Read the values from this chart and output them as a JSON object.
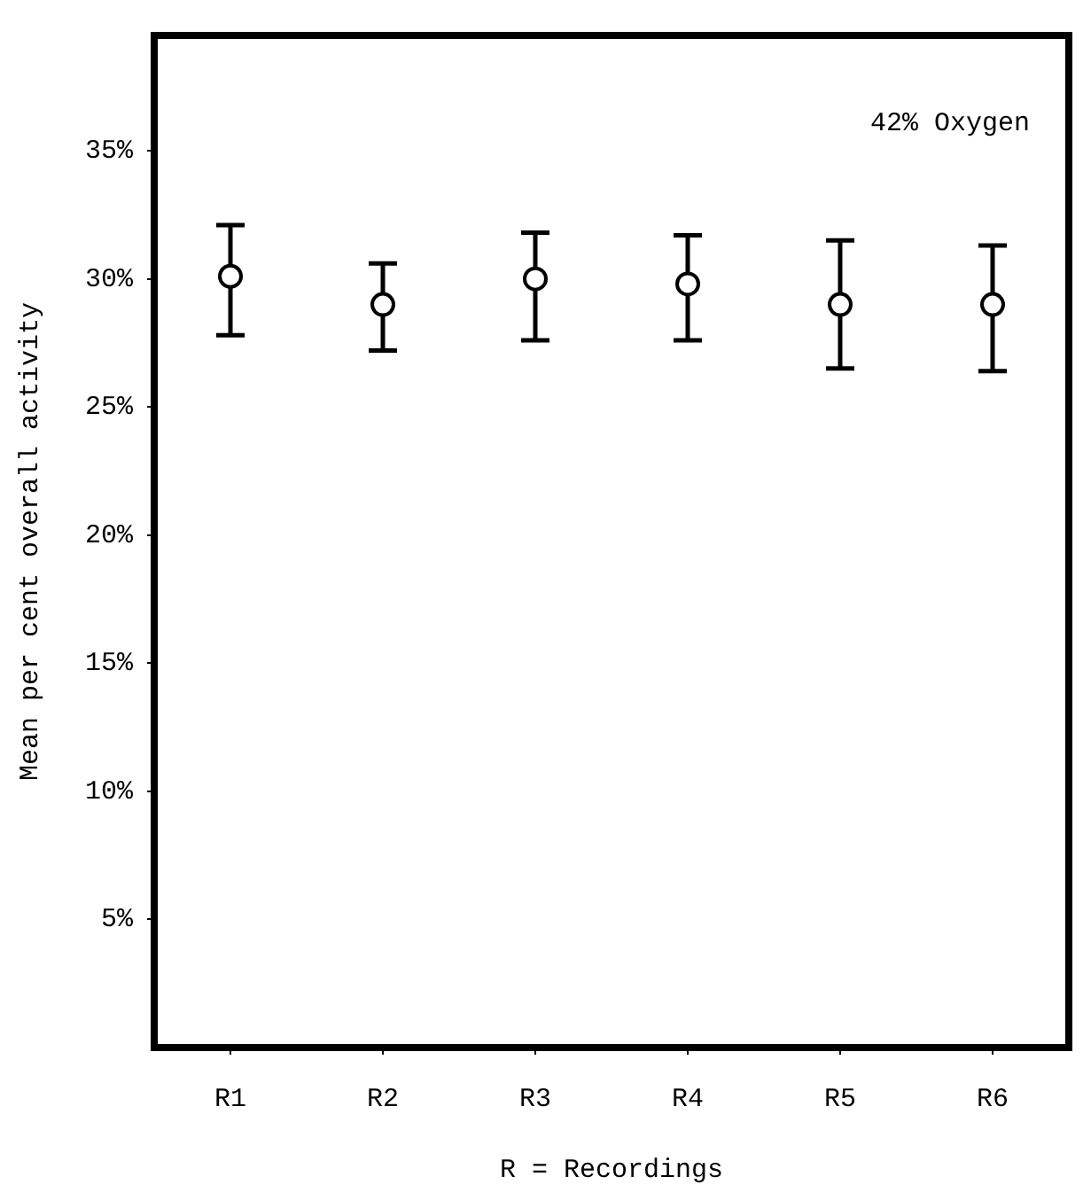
{
  "chart_data": {
    "type": "scatter",
    "xlabel": "R = Recordings",
    "ylabel": "Mean per cent overall activity",
    "annotations": [
      "42% Oxygen"
    ],
    "categories": [
      "R1",
      "R2",
      "R3",
      "R4",
      "R5",
      "R6"
    ],
    "values": [
      30.1,
      29.0,
      30.0,
      29.8,
      29.0,
      29.0
    ],
    "errors": [
      [
        27.8,
        32.1
      ],
      [
        27.2,
        30.6
      ],
      [
        27.6,
        31.8
      ],
      [
        27.6,
        31.7
      ],
      [
        26.5,
        31.5
      ],
      [
        26.4,
        31.3
      ]
    ],
    "color": "#000000",
    "marker": "circle",
    "ylim": [
      0,
      39.5
    ],
    "yticks": [
      {
        "value": 5,
        "label": "5%"
      },
      {
        "value": 10,
        "label": "10%"
      },
      {
        "value": 15,
        "label": "15%"
      },
      {
        "value": 20,
        "label": "20%"
      },
      {
        "value": 25,
        "label": "25%"
      },
      {
        "value": 30,
        "label": "30%"
      },
      {
        "value": 35,
        "label": "35%"
      }
    ]
  }
}
